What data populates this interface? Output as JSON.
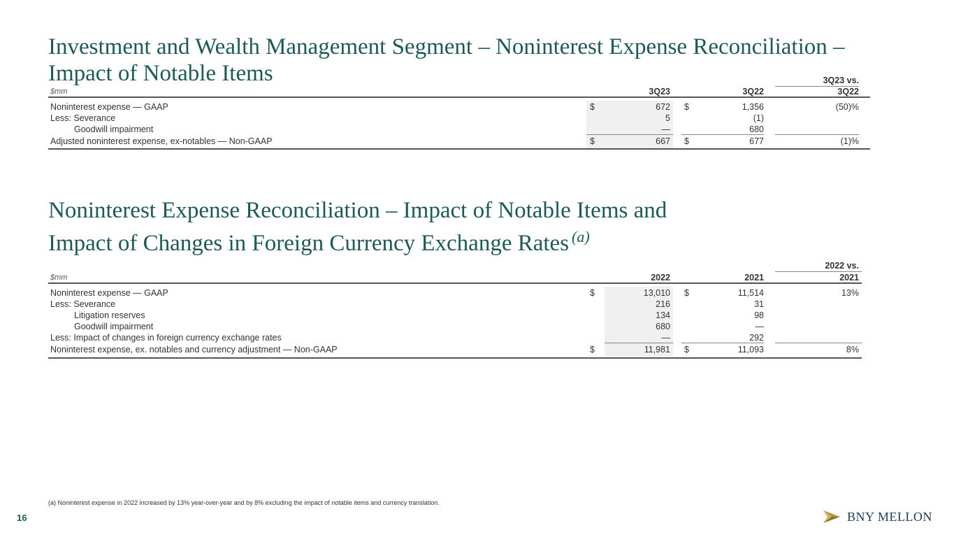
{
  "slide": {
    "title1_line1": "Investment and Wealth Management Segment – Noninterest Expense Reconciliation –",
    "title1_line2": "Impact of Notable Items",
    "title2_line1": "Noninterest Expense Reconciliation – Impact of Notable Items and",
    "title2_line2": "Impact of Changes in Foreign Currency Exchange Rates",
    "title2_note": "(a)",
    "footnote": "(a) Noninterest expense in 2022 increased by 13% year-over-year and by 8% excluding the impact of notable items and currency translation.",
    "page_number": "16",
    "logo_text": "BNY MELLON"
  },
  "table1": {
    "unit": "$mm",
    "col1": "3Q23",
    "col2": "3Q22",
    "col3_top": "3Q23 vs.",
    "col3": "3Q22",
    "rows": [
      {
        "label": "Noninterest expense — GAAP",
        "d1": "$",
        "v1": "672",
        "d2": "$",
        "v2": "1,356",
        "v3": "(50)%"
      },
      {
        "label": "Less: Severance",
        "d1": "",
        "v1": "5",
        "d2": "",
        "v2": "(1)",
        "v3": ""
      },
      {
        "label": "Goodwill impairment",
        "d1": "",
        "v1": "—",
        "d2": "",
        "v2": "680",
        "v3": ""
      },
      {
        "label": "Adjusted noninterest expense, ex-notables — Non-GAAP",
        "d1": "$",
        "v1": "667",
        "d2": "$",
        "v2": "677",
        "v3": "(1)%"
      }
    ]
  },
  "table2": {
    "unit": "$mm",
    "col1": "2022",
    "col2": "2021",
    "col3_top": "2022 vs.",
    "col3": "2021",
    "rows": [
      {
        "label": "Noninterest expense — GAAP",
        "d1": "$",
        "v1": "13,010",
        "d2": "$",
        "v2": "11,514",
        "v3": "13%"
      },
      {
        "label": "Less: Severance",
        "d1": "",
        "v1": "216",
        "d2": "",
        "v2": "31",
        "v3": ""
      },
      {
        "label": "Litigation reserves",
        "d1": "",
        "v1": "134",
        "d2": "",
        "v2": "98",
        "v3": ""
      },
      {
        "label": "Goodwill impairment",
        "d1": "",
        "v1": "680",
        "d2": "",
        "v2": "—",
        "v3": ""
      },
      {
        "label": "Less: Impact of changes in foreign currency exchange rates",
        "d1": "",
        "v1": "—",
        "d2": "",
        "v2": "292",
        "v3": ""
      },
      {
        "label": "Noninterest expense, ex. notables and currency adjustment — Non-GAAP",
        "d1": "$",
        "v1": "11,981",
        "d2": "$",
        "v2": "11,093",
        "v3": "8%"
      }
    ]
  },
  "colors": {
    "title": "#1d5a55",
    "shade": "#f0f0f0",
    "logo_gold": "#b8953f",
    "logo_navy": "#1d3c56"
  }
}
